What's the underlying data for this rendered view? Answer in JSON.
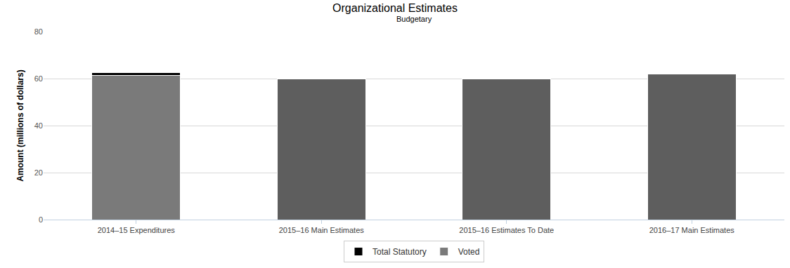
{
  "chart_data": {
    "type": "bar",
    "title": "Organizational Estimates",
    "subtitle": "Budgetary",
    "y_label": "Amount (millions of dollars)",
    "categories": [
      "2014–15 Expenditures",
      "2015–16 Main Estimates",
      "2015–16 Estimates To Date",
      "2016–17 Main Estimates"
    ],
    "series": [
      {
        "name": "Voted",
        "colors": [
          "#7a7a7a",
          "#5e5e5e",
          "#5e5e5e",
          "#5e5e5e"
        ],
        "values": [
          61.2,
          59.8,
          59.8,
          62.0
        ]
      },
      {
        "name": "Total Statutory",
        "color": "#000000",
        "values": [
          1.3,
          0,
          0,
          0
        ]
      }
    ],
    "stacked": true,
    "ylim": [
      0,
      80
    ],
    "yticks": [
      0,
      20,
      40,
      60,
      80
    ],
    "grid": true,
    "legend": "bottom"
  }
}
